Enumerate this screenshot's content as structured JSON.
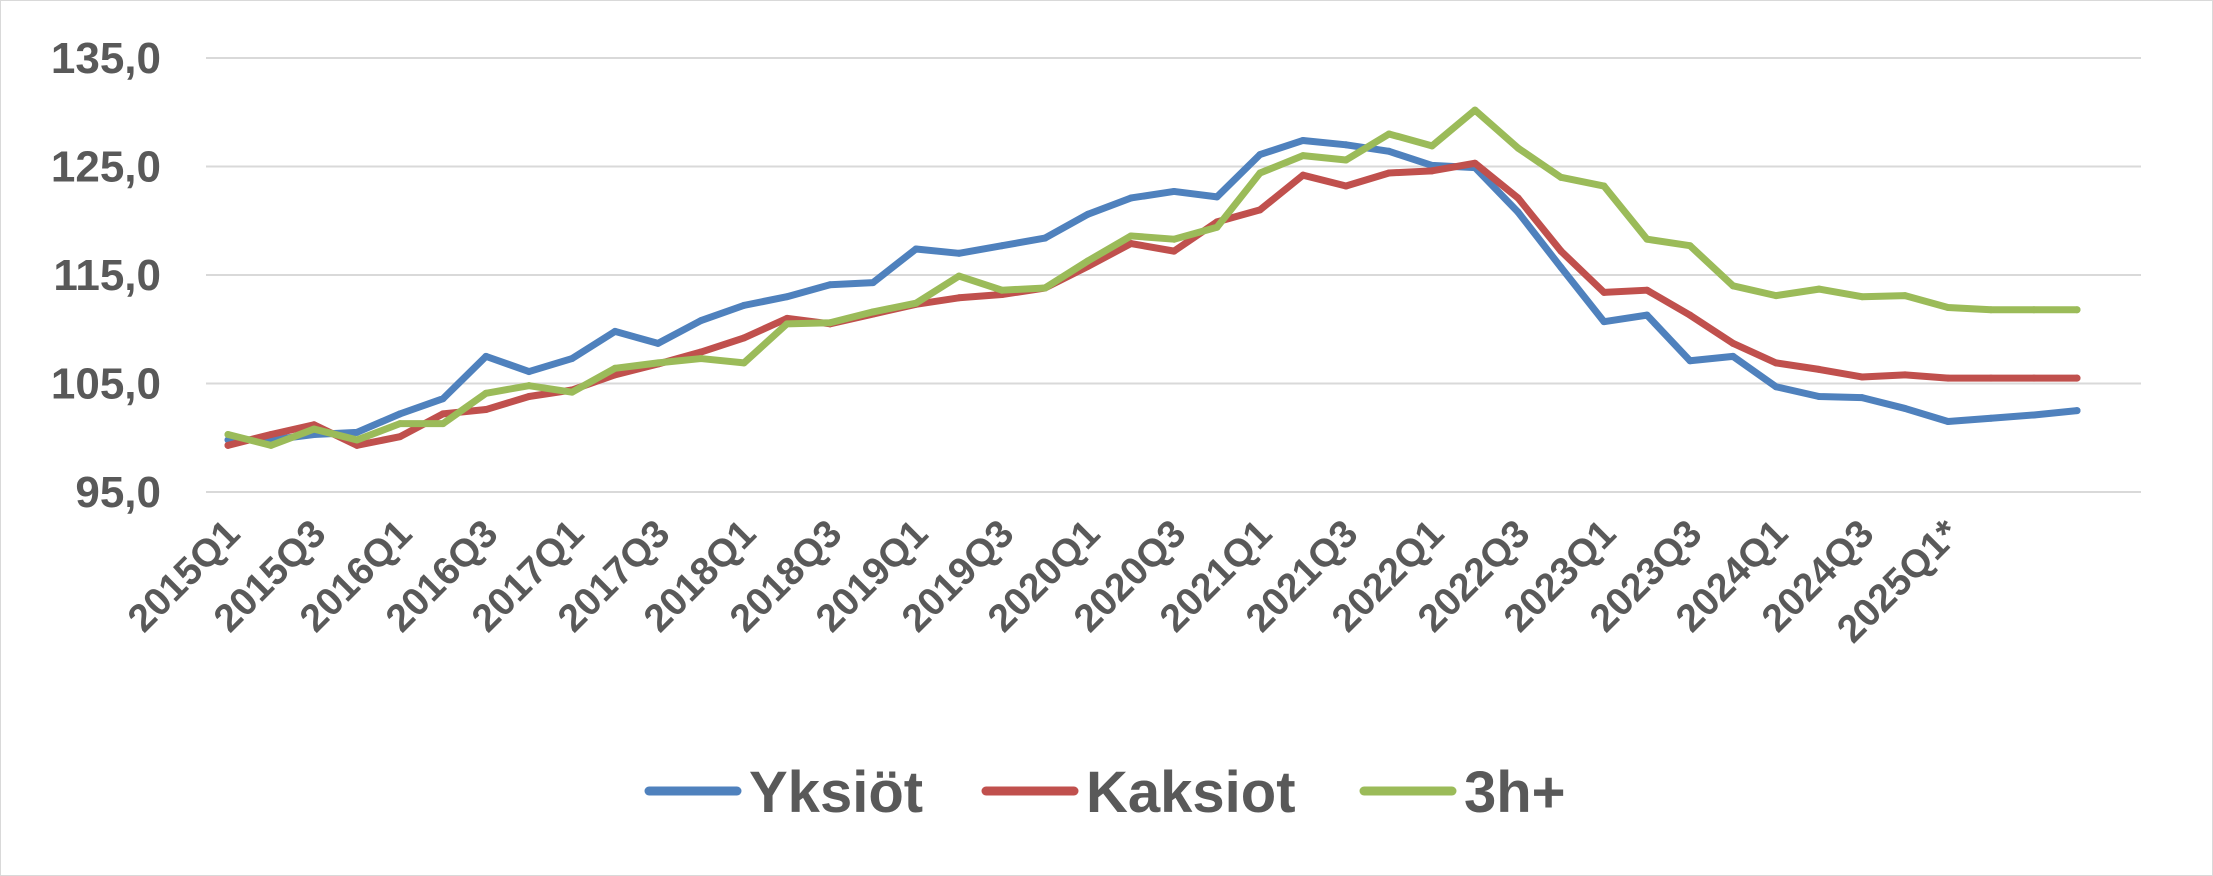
{
  "chart_data": {
    "type": "line",
    "title": "",
    "xlabel": "",
    "ylabel": "",
    "ylim": [
      95,
      135
    ],
    "yticks": [
      "95,0",
      "105,0",
      "115,0",
      "125,0",
      "135,0"
    ],
    "ytick_values": [
      95,
      105,
      115,
      125,
      135
    ],
    "grid": true,
    "legend_position": "bottom",
    "x": [
      "2015Q1",
      "2015Q2",
      "2015Q3",
      "2015Q4",
      "2016Q1",
      "2016Q2",
      "2016Q3",
      "2016Q4",
      "2017Q1",
      "2017Q2",
      "2017Q3",
      "2017Q4",
      "2018Q1",
      "2018Q2",
      "2018Q3",
      "2018Q4",
      "2019Q1",
      "2019Q2",
      "2019Q3",
      "2019Q4",
      "2020Q1",
      "2020Q2",
      "2020Q3",
      "2020Q4",
      "2021Q1",
      "2021Q2",
      "2021Q3",
      "2021Q4",
      "2022Q1",
      "2022Q2",
      "2022Q3",
      "2022Q4",
      "2023Q1",
      "2023Q2",
      "2023Q3",
      "2023Q4",
      "2024Q1",
      "2024Q2",
      "2024Q3",
      "2024Q4",
      "2025Q1*",
      "2025Q2",
      "2025Q3",
      "2025Q4"
    ],
    "x_tick_labels": [
      "2015Q1",
      "2015Q3",
      "2016Q1",
      "2016Q3",
      "2017Q1",
      "2017Q3",
      "2018Q1",
      "2018Q3",
      "2019Q1",
      "2019Q3",
      "2020Q1",
      "2020Q3",
      "2021Q1",
      "2021Q3",
      "2022Q1",
      "2022Q3",
      "2023Q1",
      "2023Q3",
      "2024Q1",
      "2024Q3",
      "2025Q1*"
    ],
    "series": [
      {
        "name": "Yksiöt",
        "color": "#4f81bd",
        "values": [
          99.8,
          99.8,
          100.3,
          100.5,
          102.2,
          103.6,
          107.5,
          106.1,
          107.3,
          109.8,
          108.7,
          110.8,
          112.2,
          113.0,
          114.1,
          114.3,
          117.4,
          117.0,
          117.7,
          118.4,
          120.6,
          122.1,
          122.7,
          122.2,
          126.1,
          127.4,
          127.0,
          126.4,
          125.1,
          124.9,
          120.8,
          115.7,
          110.7,
          111.3,
          107.1,
          107.5,
          104.7,
          103.8,
          103.7,
          102.7,
          101.5,
          101.8,
          102.1,
          102.5
        ]
      },
      {
        "name": "Kaksiot",
        "color": "#c0504d",
        "values": [
          99.3,
          100.3,
          101.2,
          99.3,
          100.1,
          102.2,
          102.6,
          103.8,
          104.4,
          105.8,
          106.8,
          107.9,
          109.2,
          111.0,
          110.5,
          111.4,
          112.3,
          112.9,
          113.2,
          113.8,
          115.8,
          117.9,
          117.2,
          119.9,
          121.0,
          124.2,
          123.2,
          124.4,
          124.6,
          125.3,
          122.1,
          117.2,
          113.4,
          113.6,
          111.3,
          108.7,
          106.9,
          106.3,
          105.6,
          105.8,
          105.5,
          105.5,
          105.5,
          105.5
        ]
      },
      {
        "name": "3h+",
        "color": "#9bbb59",
        "values": [
          100.3,
          99.3,
          100.8,
          99.8,
          101.3,
          101.3,
          104.1,
          104.8,
          104.2,
          106.4,
          106.9,
          107.3,
          106.9,
          110.5,
          110.6,
          111.6,
          112.4,
          114.9,
          113.6,
          113.8,
          116.3,
          118.6,
          118.3,
          119.4,
          124.4,
          126.0,
          125.6,
          128.0,
          126.9,
          130.2,
          126.7,
          124.0,
          123.2,
          118.3,
          117.7,
          114.0,
          113.1,
          113.7,
          113.0,
          113.1,
          112.0,
          111.8,
          111.8,
          111.8
        ]
      }
    ]
  }
}
